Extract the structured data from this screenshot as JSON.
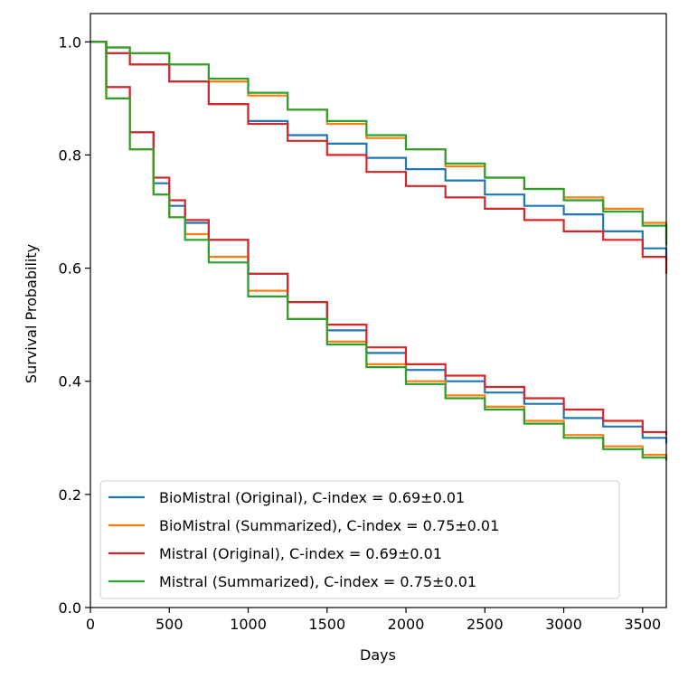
{
  "chart_data": {
    "type": "line",
    "title": "",
    "xlabel": "Days",
    "ylabel": "Survival Probability",
    "xlim": [
      0,
      3650
    ],
    "ylim": [
      0.0,
      1.05
    ],
    "xticks": [
      0,
      500,
      1000,
      1500,
      2000,
      2500,
      3000,
      3500
    ],
    "yticks": [
      0.0,
      0.2,
      0.4,
      0.6,
      0.8,
      1.0
    ],
    "xtick_labels": [
      "0",
      "500",
      "1000",
      "1500",
      "2000",
      "2500",
      "3000",
      "3500"
    ],
    "ytick_labels": [
      "0.0",
      "0.2",
      "0.4",
      "0.6",
      "0.8",
      "1.0"
    ],
    "grid": false,
    "legend_position": "lower-left",
    "series": [
      {
        "name": "BioMistral (Original), C-index = 0.69±0.01",
        "color": "#1f77b4",
        "groups": [
          {
            "x": [
              0,
              100,
              250,
              500,
              750,
              1000,
              1250,
              1500,
              1750,
              2000,
              2250,
              2500,
              2750,
              3000,
              3250,
              3500,
              3650
            ],
            "y": [
              1.0,
              0.98,
              0.96,
              0.93,
              0.89,
              0.86,
              0.835,
              0.82,
              0.795,
              0.775,
              0.755,
              0.73,
              0.71,
              0.695,
              0.665,
              0.635,
              0.61
            ]
          },
          {
            "x": [
              0,
              100,
              250,
              400,
              500,
              600,
              750,
              1000,
              1250,
              1500,
              1750,
              2000,
              2250,
              2500,
              2750,
              3000,
              3250,
              3500,
              3650
            ],
            "y": [
              1.0,
              0.92,
              0.84,
              0.75,
              0.71,
              0.68,
              0.65,
              0.59,
              0.54,
              0.49,
              0.45,
              0.42,
              0.4,
              0.38,
              0.36,
              0.335,
              0.32,
              0.3,
              0.29
            ]
          }
        ]
      },
      {
        "name": "BioMistral (Summarized), C-index = 0.75±0.01",
        "color": "#ff7f0e",
        "groups": [
          {
            "x": [
              0,
              100,
              250,
              500,
              750,
              1000,
              1250,
              1500,
              1750,
              2000,
              2250,
              2500,
              2750,
              3000,
              3250,
              3500,
              3650
            ],
            "y": [
              1.0,
              0.99,
              0.98,
              0.96,
              0.93,
              0.905,
              0.88,
              0.855,
              0.83,
              0.81,
              0.78,
              0.76,
              0.74,
              0.725,
              0.705,
              0.68,
              0.645
            ]
          },
          {
            "x": [
              0,
              100,
              250,
              400,
              500,
              600,
              750,
              1000,
              1250,
              1500,
              1750,
              2000,
              2250,
              2500,
              2750,
              3000,
              3250,
              3500,
              3650
            ],
            "y": [
              1.0,
              0.9,
              0.81,
              0.73,
              0.69,
              0.66,
              0.62,
              0.56,
              0.51,
              0.47,
              0.43,
              0.4,
              0.375,
              0.355,
              0.33,
              0.305,
              0.285,
              0.27,
              0.26
            ]
          }
        ]
      },
      {
        "name": "Mistral (Original), C-index = 0.69±0.01",
        "color": "#d62728",
        "groups": [
          {
            "x": [
              0,
              100,
              250,
              500,
              750,
              1000,
              1250,
              1500,
              1750,
              2000,
              2250,
              2500,
              2750,
              3000,
              3250,
              3500,
              3650
            ],
            "y": [
              1.0,
              0.98,
              0.96,
              0.93,
              0.89,
              0.855,
              0.825,
              0.8,
              0.77,
              0.745,
              0.725,
              0.705,
              0.685,
              0.665,
              0.65,
              0.62,
              0.59
            ]
          },
          {
            "x": [
              0,
              100,
              250,
              400,
              500,
              600,
              750,
              1000,
              1250,
              1500,
              1750,
              2000,
              2250,
              2500,
              2750,
              3000,
              3250,
              3500,
              3650
            ],
            "y": [
              1.0,
              0.92,
              0.84,
              0.76,
              0.72,
              0.685,
              0.65,
              0.59,
              0.54,
              0.5,
              0.46,
              0.43,
              0.41,
              0.39,
              0.37,
              0.35,
              0.33,
              0.31,
              0.305
            ]
          }
        ]
      },
      {
        "name": "Mistral (Summarized), C-index = 0.75±0.01",
        "color": "#2ca02c",
        "groups": [
          {
            "x": [
              0,
              100,
              250,
              500,
              750,
              1000,
              1250,
              1500,
              1750,
              2000,
              2250,
              2500,
              2750,
              3000,
              3250,
              3500,
              3650
            ],
            "y": [
              1.0,
              0.99,
              0.98,
              0.96,
              0.935,
              0.91,
              0.88,
              0.86,
              0.835,
              0.81,
              0.785,
              0.76,
              0.74,
              0.72,
              0.7,
              0.675,
              0.64
            ]
          },
          {
            "x": [
              0,
              100,
              250,
              400,
              500,
              600,
              750,
              1000,
              1250,
              1500,
              1750,
              2000,
              2250,
              2500,
              2750,
              3000,
              3250,
              3500,
              3650
            ],
            "y": [
              1.0,
              0.9,
              0.81,
              0.73,
              0.69,
              0.65,
              0.61,
              0.55,
              0.51,
              0.465,
              0.425,
              0.395,
              0.37,
              0.35,
              0.325,
              0.3,
              0.28,
              0.265,
              0.26
            ]
          }
        ]
      }
    ]
  }
}
